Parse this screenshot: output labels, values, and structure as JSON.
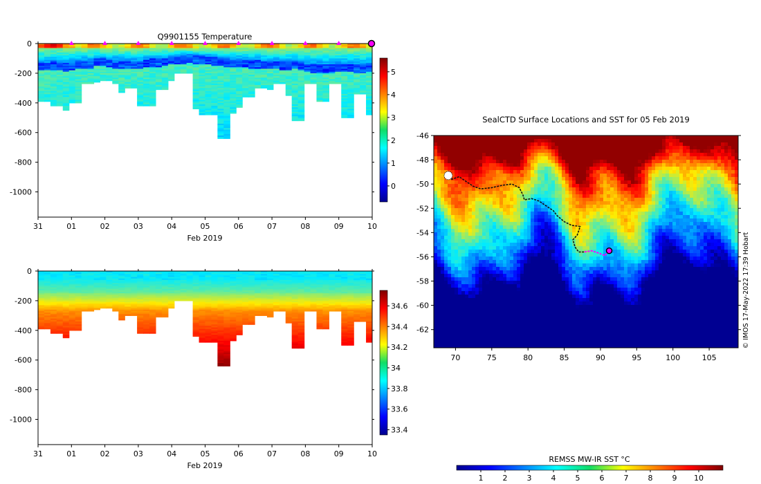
{
  "figure": {
    "top_left_title": "Q9901155  Temperature",
    "map_title": "SealCTD Surface Locations and SST for 05 Feb 2019",
    "credit": "© IMOS 17-May-2022 17:39 Hobart",
    "sst_colorbar_label": "REMSS MW-IR SST °C"
  },
  "colors": {
    "trajectory": "#111111",
    "recent_track": "#ff00ff",
    "current_position": "#ff00ff",
    "profile_marker": "#ff00ff",
    "frame": "#000000"
  },
  "chart_data": [
    {
      "type": "heatmap",
      "name": "temperature-section",
      "title": "Q9901155  Temperature",
      "xlabel": "Feb 2019",
      "ylabel": "",
      "x_tick_labels": [
        "31",
        "01",
        "02",
        "03",
        "04",
        "05",
        "06",
        "07",
        "08",
        "09",
        "10"
      ],
      "x_range_days": [
        0,
        10
      ],
      "y_ticks": [
        0,
        -200,
        -400,
        -600,
        -800,
        -1000
      ],
      "ylim": [
        -1170,
        0
      ],
      "profile_marker_days": [
        1,
        2,
        3,
        4,
        5,
        6,
        7,
        8,
        9
      ],
      "last_profile_day": 10,
      "profile_max_depths_m": [
        390,
        390,
        420,
        420,
        450,
        400,
        400,
        270,
        270,
        260,
        250,
        250,
        270,
        330,
        300,
        300,
        420,
        420,
        420,
        310,
        310,
        250,
        200,
        200,
        200,
        440,
        480,
        480,
        480,
        640,
        640,
        470,
        430,
        360,
        360,
        300,
        300,
        310,
        270,
        270,
        350,
        520,
        520,
        270,
        270,
        390,
        390,
        270,
        270,
        500,
        500,
        340,
        340,
        480
      ],
      "thermocline_depths_m": [
        160,
        160,
        155,
        160,
        165,
        160,
        150,
        150,
        150,
        130,
        130,
        140,
        145,
        150,
        150,
        150,
        150,
        140,
        135,
        135,
        130,
        120,
        120,
        115,
        110,
        115,
        115,
        120,
        125,
        130,
        135,
        140,
        140,
        140,
        145,
        145,
        150,
        150,
        150,
        155,
        155,
        150,
        160,
        170,
        175,
        175,
        175,
        175,
        170,
        170,
        170,
        175,
        175,
        170
      ],
      "colorbar": {
        "ticks": [
          0,
          1,
          2,
          3,
          4,
          5
        ],
        "range": [
          -0.7,
          5.6
        ],
        "colormap": "jet"
      }
    },
    {
      "type": "heatmap",
      "name": "salinity-section",
      "title": "",
      "xlabel": "Feb 2019",
      "ylabel": "",
      "x_tick_labels": [
        "31",
        "01",
        "02",
        "03",
        "04",
        "05",
        "06",
        "07",
        "08",
        "09",
        "10"
      ],
      "x_range_days": [
        0,
        10
      ],
      "y_ticks": [
        0,
        -200,
        -400,
        -600,
        -800,
        -1000
      ],
      "ylim": [
        -1170,
        0
      ],
      "colorbar": {
        "ticks": [
          33.4,
          33.6,
          33.8,
          34,
          34.2,
          34.4,
          34.6
        ],
        "tick_labels": [
          "33.4",
          "33.6",
          "33.8",
          "34",
          "34.2",
          "34.4",
          "34.6"
        ],
        "range": [
          33.35,
          34.75
        ],
        "colormap": "jet"
      }
    },
    {
      "type": "heatmap",
      "name": "sst-map",
      "title": "SealCTD Surface Locations and SST for 05 Feb 2019",
      "x_ticks": [
        70,
        75,
        80,
        85,
        90,
        95,
        100,
        105
      ],
      "y_ticks": [
        -46,
        -48,
        -50,
        -52,
        -54,
        -56,
        -58,
        -60,
        -62
      ],
      "xlim": [
        67,
        109
      ],
      "ylim": [
        -63.5,
        -46
      ],
      "trajectory_lon_lat": [
        [
          68.8,
          -49.2
        ],
        [
          69.5,
          -49.6
        ],
        [
          70.5,
          -49.4
        ],
        [
          71.5,
          -49.8
        ],
        [
          72.5,
          -50.2
        ],
        [
          73.5,
          -50.4
        ],
        [
          75,
          -50.3
        ],
        [
          76.5,
          -50.1
        ],
        [
          77.8,
          -50.0
        ],
        [
          78.8,
          -50.3
        ],
        [
          79.3,
          -50.9
        ],
        [
          79.5,
          -51.3
        ],
        [
          80.5,
          -51.2
        ],
        [
          81.5,
          -51.4
        ],
        [
          82.5,
          -51.8
        ],
        [
          83.5,
          -52.2
        ],
        [
          84,
          -52.6
        ],
        [
          85,
          -53.1
        ],
        [
          86,
          -53.4
        ],
        [
          87.2,
          -53.5
        ],
        [
          86.8,
          -54.2
        ],
        [
          86.2,
          -54.6
        ],
        [
          86.5,
          -55.2
        ],
        [
          87,
          -55.6
        ],
        [
          87.8,
          -55.6
        ],
        [
          88.8,
          -55.5
        ],
        [
          89.8,
          -55.7
        ],
        [
          90.6,
          -55.9
        ],
        [
          91.2,
          -55.5
        ]
      ],
      "recent_track_from_index": 24,
      "current_position_lon_lat": [
        91.2,
        -55.5
      ],
      "colorbar": {
        "ticks": [
          1,
          2,
          3,
          4,
          5,
          6,
          7,
          8,
          9,
          10
        ],
        "range": [
          0,
          11
        ],
        "colormap": "jet",
        "label": "REMSS MW-IR SST °C"
      }
    }
  ]
}
